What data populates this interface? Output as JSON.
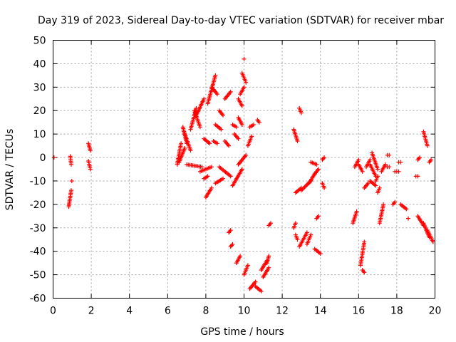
{
  "chart_data": {
    "type": "scatter",
    "title": "Day 319 of 2023, Sidereal Day-to-day VTEC variation (SDTVAR) for receiver mbar",
    "xlabel": "GPS time / hours",
    "ylabel": "SDTVAR / TECUs",
    "xlim": [
      0,
      20
    ],
    "ylim": [
      -60,
      50
    ],
    "xticks": [
      0,
      2,
      4,
      6,
      8,
      10,
      12,
      14,
      16,
      18,
      20
    ],
    "yticks": [
      -60,
      -50,
      -40,
      -30,
      -20,
      -10,
      0,
      10,
      20,
      30,
      40,
      50
    ],
    "grid": true,
    "marker": "+",
    "color": "#ff0000",
    "segments": [
      [
        0.05,
        0,
        0.05,
        0
      ],
      [
        0.82,
        -21,
        0.95,
        -14
      ],
      [
        0.9,
        0.5,
        0.95,
        -3
      ],
      [
        0.98,
        -10,
        1.0,
        -10
      ],
      [
        1.85,
        6,
        1.95,
        3
      ],
      [
        1.85,
        -1.5,
        1.95,
        -5
      ],
      [
        6.5,
        -3,
        6.7,
        6
      ],
      [
        6.6,
        -2,
        6.9,
        4
      ],
      [
        6.8,
        13,
        7.0,
        6
      ],
      [
        6.9,
        10,
        7.2,
        3
      ],
      [
        7.0,
        -3,
        7.8,
        -4
      ],
      [
        7.2,
        12,
        7.5,
        21
      ],
      [
        7.4,
        20,
        7.7,
        13
      ],
      [
        7.5,
        18,
        7.9,
        25
      ],
      [
        7.7,
        -6,
        8.3,
        -4
      ],
      [
        7.9,
        8,
        8.2,
        6
      ],
      [
        7.9,
        -9,
        8.1,
        -8
      ],
      [
        8.0,
        -17,
        8.3,
        -13
      ],
      [
        8.1,
        23,
        8.5,
        35
      ],
      [
        8.3,
        30,
        8.6,
        27
      ],
      [
        8.4,
        7,
        8.6,
        6
      ],
      [
        8.5,
        -11,
        8.9,
        -9
      ],
      [
        8.5,
        14,
        8.8,
        12
      ],
      [
        8.7,
        20,
        8.9,
        18
      ],
      [
        8.7,
        -4,
        9.3,
        -8
      ],
      [
        9.0,
        7,
        9.2,
        5
      ],
      [
        9.0,
        25,
        9.3,
        28
      ],
      [
        9.2,
        -32,
        9.3,
        -31
      ],
      [
        9.3,
        -38,
        9.4,
        -37
      ],
      [
        9.4,
        14,
        9.6,
        13
      ],
      [
        9.4,
        -12,
        9.9,
        -5
      ],
      [
        9.5,
        10,
        9.7,
        8
      ],
      [
        9.6,
        -45,
        9.8,
        -42
      ],
      [
        9.7,
        25,
        9.9,
        22
      ],
      [
        9.7,
        17,
        9.9,
        14
      ],
      [
        9.7,
        -3,
        10.1,
        1
      ],
      [
        9.8,
        27,
        10.0,
        30
      ],
      [
        9.9,
        36,
        10.1,
        32
      ],
      [
        10.0,
        42,
        10.0,
        42
      ],
      [
        10.0,
        -50,
        10.2,
        -46
      ],
      [
        10.2,
        5,
        10.4,
        9
      ],
      [
        10.3,
        -56,
        10.6,
        -53
      ],
      [
        10.3,
        13,
        10.5,
        14
      ],
      [
        10.6,
        -55,
        10.9,
        -57
      ],
      [
        10.7,
        16,
        10.8,
        15
      ],
      [
        10.9,
        -48,
        11.2,
        -44
      ],
      [
        11.0,
        -51,
        11.3,
        -47
      ],
      [
        11.2,
        -45,
        11.3,
        -42
      ],
      [
        11.3,
        -29,
        11.4,
        -28
      ],
      [
        12.6,
        -30,
        12.7,
        -28
      ],
      [
        12.6,
        12,
        12.8,
        7
      ],
      [
        12.7,
        -33,
        12.8,
        -35
      ],
      [
        12.7,
        -15,
        13.0,
        -13
      ],
      [
        12.9,
        21,
        13.0,
        19
      ],
      [
        12.9,
        -38,
        13.3,
        -32
      ],
      [
        13.0,
        -14,
        13.5,
        -10
      ],
      [
        13.3,
        -37,
        13.5,
        -33
      ],
      [
        13.4,
        -11,
        13.7,
        -7
      ],
      [
        13.5,
        -2,
        13.8,
        -3
      ],
      [
        13.7,
        -39,
        14.0,
        -41
      ],
      [
        13.7,
        -7,
        13.9,
        -5
      ],
      [
        13.8,
        -26,
        13.9,
        -25
      ],
      [
        14.1,
        -11,
        14.2,
        -13
      ],
      [
        14.1,
        -1,
        14.2,
        0
      ],
      [
        15.7,
        -28,
        15.9,
        -23
      ],
      [
        15.8,
        -4,
        16.0,
        -1
      ],
      [
        16.0,
        -3,
        16.2,
        -6
      ],
      [
        16.1,
        -46,
        16.3,
        -36
      ],
      [
        16.2,
        -48,
        16.3,
        -49
      ],
      [
        16.3,
        -13,
        16.5,
        -11
      ],
      [
        16.4,
        -4,
        16.6,
        -1
      ],
      [
        16.6,
        -10,
        16.9,
        -12
      ],
      [
        16.6,
        -3,
        16.9,
        -8
      ],
      [
        16.7,
        2,
        17.0,
        -5
      ],
      [
        16.9,
        -10,
        17.0,
        -8
      ],
      [
        17.0,
        -15,
        17.1,
        -13
      ],
      [
        17.1,
        -28,
        17.3,
        -20
      ],
      [
        17.2,
        -6,
        17.4,
        -3
      ],
      [
        17.5,
        1,
        17.6,
        1
      ],
      [
        17.5,
        -4,
        17.6,
        -4
      ],
      [
        17.8,
        -20,
        17.9,
        -19
      ],
      [
        17.9,
        -6,
        18.1,
        -6
      ],
      [
        18.1,
        -2,
        18.2,
        -2
      ],
      [
        18.2,
        -20,
        18.5,
        -22
      ],
      [
        18.6,
        -26,
        18.6,
        -26
      ],
      [
        19.0,
        -8,
        19.1,
        -8
      ],
      [
        19.1,
        -25,
        19.4,
        -29
      ],
      [
        19.1,
        -1,
        19.2,
        0
      ],
      [
        19.4,
        -28,
        19.7,
        -34
      ],
      [
        19.4,
        11,
        19.6,
        5
      ],
      [
        19.6,
        -31,
        19.9,
        -36
      ],
      [
        19.7,
        -2,
        19.8,
        -1
      ]
    ]
  }
}
